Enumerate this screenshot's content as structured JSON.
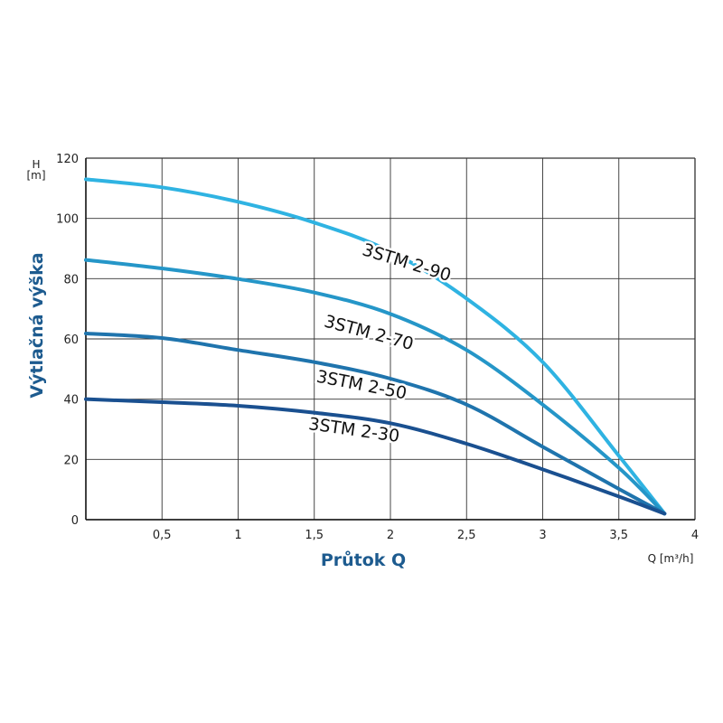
{
  "chart_data": {
    "type": "line",
    "xlabel": "Průtok Q",
    "x_unit_label": "Q [m³/h]",
    "ylabel": "Výtlačná výška",
    "y_unit_label_top": "H",
    "y_unit_label_bottom": "[m]",
    "xlim": [
      0,
      4
    ],
    "ylim": [
      0,
      120
    ],
    "grid": true,
    "x_ticks": [
      "0,5",
      "1",
      "1,5",
      "2",
      "2,5",
      "3",
      "3,5",
      "4"
    ],
    "x_tick_values": [
      0.5,
      1,
      1.5,
      2,
      2.5,
      3,
      3.5,
      4
    ],
    "y_ticks": [
      "0",
      "20",
      "40",
      "60",
      "80",
      "100",
      "120"
    ],
    "y_tick_values": [
      0,
      20,
      40,
      60,
      80,
      100,
      120
    ],
    "x": [
      0,
      0.5,
      1,
      1.5,
      2,
      2.5,
      3,
      3.5,
      3.8
    ],
    "series": [
      {
        "name": "3STM 2-90",
        "color": "#2fb3e2",
        "values": [
          113,
          110.3,
          105.5,
          98.6,
          89,
          73.4,
          52.3,
          21.2,
          2
        ]
      },
      {
        "name": "3STM 2-70",
        "color": "#2596c8",
        "values": [
          86.2,
          83.4,
          79.9,
          75.4,
          68.3,
          56.3,
          38.2,
          17.2,
          2
        ]
      },
      {
        "name": "3STM 2-50",
        "color": "#1f74ad",
        "values": [
          61.8,
          60.3,
          56.3,
          52.3,
          46.8,
          38.2,
          24.2,
          10.2,
          2
        ]
      },
      {
        "name": "3STM 2-30",
        "color": "#1a5090",
        "values": [
          40,
          39,
          37.8,
          35.5,
          32,
          25.2,
          16.7,
          7.7,
          2
        ]
      }
    ]
  }
}
